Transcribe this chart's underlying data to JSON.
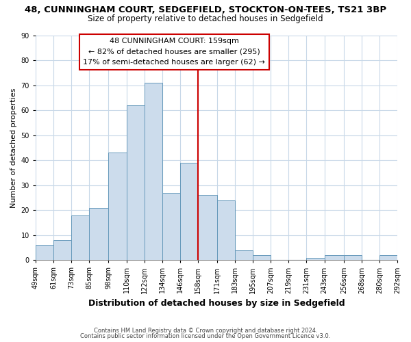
{
  "title1": "48, CUNNINGHAM COURT, SEDGEFIELD, STOCKTON-ON-TEES, TS21 3BP",
  "title2": "Size of property relative to detached houses in Sedgefield",
  "xlabel": "Distribution of detached houses by size in Sedgefield",
  "ylabel": "Number of detached properties",
  "bar_left_edges": [
    49,
    61,
    73,
    85,
    98,
    110,
    122,
    134,
    146,
    158,
    171,
    183,
    195,
    207,
    219,
    231,
    243,
    256,
    268,
    280
  ],
  "bar_heights": [
    6,
    8,
    18,
    21,
    43,
    62,
    71,
    27,
    39,
    26,
    24,
    4,
    2,
    0,
    0,
    1,
    2,
    2,
    0,
    2
  ],
  "bar_widths": [
    12,
    12,
    12,
    13,
    12,
    12,
    12,
    12,
    12,
    13,
    12,
    12,
    12,
    12,
    12,
    12,
    13,
    12,
    12,
    12
  ],
  "x_tick_labels": [
    "49sqm",
    "61sqm",
    "73sqm",
    "85sqm",
    "98sqm",
    "110sqm",
    "122sqm",
    "134sqm",
    "146sqm",
    "158sqm",
    "171sqm",
    "183sqm",
    "195sqm",
    "207sqm",
    "219sqm",
    "231sqm",
    "243sqm",
    "256sqm",
    "268sqm",
    "280sqm",
    "292sqm"
  ],
  "ylim": [
    0,
    90
  ],
  "yticks": [
    0,
    10,
    20,
    30,
    40,
    50,
    60,
    70,
    80,
    90
  ],
  "bar_color": "#ccdcec",
  "bar_edge_color": "#6699bb",
  "vline_x": 158,
  "vline_color": "#cc0000",
  "annotation_title": "48 CUNNINGHAM COURT: 159sqm",
  "annotation_line1": "← 82% of detached houses are smaller (295)",
  "annotation_line2": "17% of semi-detached houses are larger (62) →",
  "annotation_box_facecolor": "#ffffff",
  "annotation_box_edgecolor": "#cc0000",
  "footer1": "Contains HM Land Registry data © Crown copyright and database right 2024.",
  "footer2": "Contains public sector information licensed under the Open Government Licence v3.0.",
  "fig_facecolor": "#ffffff",
  "plot_facecolor": "#ffffff",
  "grid_color": "#c8d8e8",
  "title1_fontsize": 9.5,
  "title2_fontsize": 8.5,
  "xlabel_fontsize": 9,
  "ylabel_fontsize": 8,
  "tick_fontsize": 7,
  "annot_fontsize": 8,
  "footer_fontsize": 6
}
